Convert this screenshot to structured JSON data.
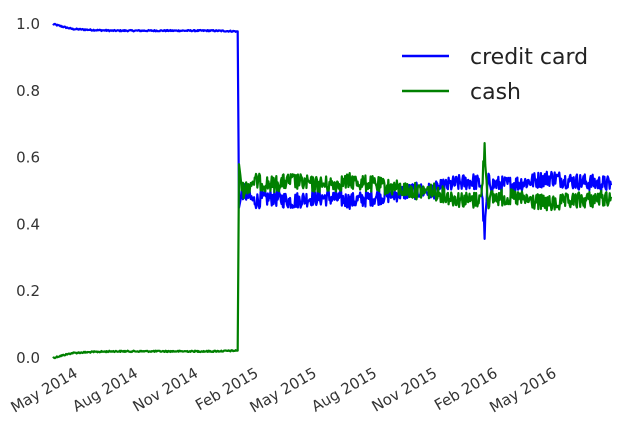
{
  "chart_data": {
    "type": "line",
    "title": "",
    "xlabel": "",
    "ylabel": "",
    "legend_position": "top-right",
    "grid": false,
    "xlim": [
      "2014-04-01",
      "2016-07-31"
    ],
    "ylim": [
      0.0,
      1.0
    ],
    "x_ticks": [
      {
        "date": "2014-05-01",
        "label": "May 2014"
      },
      {
        "date": "2014-08-01",
        "label": "Aug 2014"
      },
      {
        "date": "2014-11-01",
        "label": "Nov 2014"
      },
      {
        "date": "2015-02-01",
        "label": "Feb 2015"
      },
      {
        "date": "2015-05-01",
        "label": "May 2015"
      },
      {
        "date": "2015-08-01",
        "label": "Aug 2015"
      },
      {
        "date": "2015-11-01",
        "label": "Nov 2015"
      },
      {
        "date": "2016-02-01",
        "label": "Feb 2016"
      },
      {
        "date": "2016-05-01",
        "label": "May 2016"
      }
    ],
    "y_ticks": [
      {
        "value": 0.0,
        "label": "0.0"
      },
      {
        "value": 0.2,
        "label": "0.2"
      },
      {
        "value": 0.4,
        "label": "0.4"
      },
      {
        "value": 0.6,
        "label": "0.6"
      },
      {
        "value": 0.8,
        "label": "0.8"
      },
      {
        "value": 1.0,
        "label": "1.0"
      }
    ],
    "series": [
      {
        "name": "credit card",
        "color": "#0000ff",
        "points": [
          [
            "2014-04-01",
            1.0
          ],
          [
            "2014-04-10",
            0.995
          ],
          [
            "2014-04-20",
            0.99
          ],
          [
            "2014-05-01",
            0.985
          ],
          [
            "2014-06-01",
            0.982
          ],
          [
            "2014-07-01",
            0.98
          ],
          [
            "2014-08-01",
            0.98
          ],
          [
            "2014-09-01",
            0.98
          ],
          [
            "2014-10-01",
            0.98
          ],
          [
            "2014-11-01",
            0.98
          ],
          [
            "2014-12-01",
            0.98
          ],
          [
            "2015-01-08",
            0.978
          ],
          [
            "2015-01-10",
            0.45
          ],
          [
            "2015-01-15",
            0.5
          ],
          [
            "2015-02-01",
            0.47
          ],
          [
            "2015-03-01",
            0.48
          ],
          [
            "2015-04-01",
            0.47
          ],
          [
            "2015-05-01",
            0.48
          ],
          [
            "2015-06-01",
            0.48
          ],
          [
            "2015-07-01",
            0.47
          ],
          [
            "2015-08-01",
            0.48
          ],
          [
            "2015-09-01",
            0.49
          ],
          [
            "2015-10-01",
            0.5
          ],
          [
            "2015-11-01",
            0.5
          ],
          [
            "2015-12-01",
            0.52
          ],
          [
            "2016-01-01",
            0.53
          ],
          [
            "2016-01-15",
            0.52
          ],
          [
            "2016-01-20",
            0.37
          ],
          [
            "2016-01-25",
            0.53
          ],
          [
            "2016-02-01",
            0.52
          ],
          [
            "2016-03-01",
            0.52
          ],
          [
            "2016-04-01",
            0.53
          ],
          [
            "2016-05-01",
            0.54
          ],
          [
            "2016-06-01",
            0.53
          ],
          [
            "2016-07-31",
            0.52
          ]
        ]
      },
      {
        "name": "cash",
        "color": "#008000",
        "points": [
          [
            "2014-04-01",
            0.0
          ],
          [
            "2014-04-10",
            0.005
          ],
          [
            "2014-04-20",
            0.01
          ],
          [
            "2014-05-01",
            0.015
          ],
          [
            "2014-06-01",
            0.018
          ],
          [
            "2014-07-01",
            0.02
          ],
          [
            "2014-08-01",
            0.02
          ],
          [
            "2014-09-01",
            0.02
          ],
          [
            "2014-10-01",
            0.02
          ],
          [
            "2014-11-01",
            0.02
          ],
          [
            "2014-12-01",
            0.02
          ],
          [
            "2015-01-08",
            0.022
          ],
          [
            "2015-01-10",
            0.58
          ],
          [
            "2015-01-15",
            0.5
          ],
          [
            "2015-02-01",
            0.53
          ],
          [
            "2015-03-01",
            0.52
          ],
          [
            "2015-04-01",
            0.53
          ],
          [
            "2015-05-01",
            0.52
          ],
          [
            "2015-06-01",
            0.52
          ],
          [
            "2015-07-01",
            0.53
          ],
          [
            "2015-08-01",
            0.52
          ],
          [
            "2015-09-01",
            0.51
          ],
          [
            "2015-10-01",
            0.5
          ],
          [
            "2015-11-01",
            0.5
          ],
          [
            "2015-12-01",
            0.48
          ],
          [
            "2016-01-01",
            0.47
          ],
          [
            "2016-01-15",
            0.48
          ],
          [
            "2016-01-20",
            0.63
          ],
          [
            "2016-01-25",
            0.47
          ],
          [
            "2016-02-01",
            0.48
          ],
          [
            "2016-03-01",
            0.48
          ],
          [
            "2016-04-01",
            0.47
          ],
          [
            "2016-05-01",
            0.46
          ],
          [
            "2016-06-01",
            0.47
          ],
          [
            "2016-07-31",
            0.48
          ]
        ]
      }
    ]
  }
}
